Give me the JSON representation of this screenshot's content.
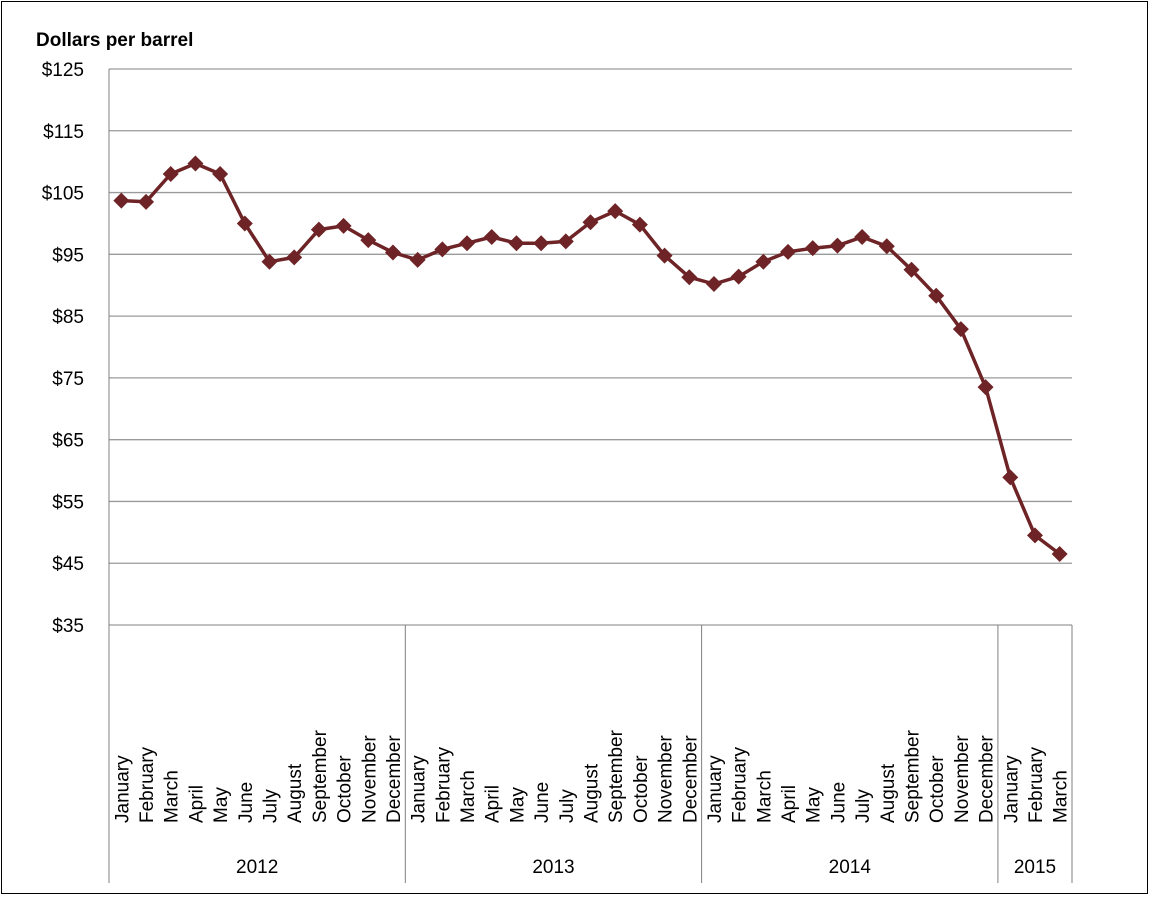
{
  "chart_data": {
    "type": "line",
    "ylabel": "Dollars per barrel",
    "xlabel": "",
    "ylim": [
      35,
      125
    ],
    "y_ticks": [
      "$35",
      "$45",
      "$55",
      "$65",
      "$75",
      "$85",
      "$95",
      "$105",
      "$115",
      "$125"
    ],
    "grid": true,
    "legend": "none",
    "colors": {
      "line": "#6e2426",
      "grid": "#9a9a9a",
      "axis": "#808080"
    },
    "marker": "diamond",
    "year_groups": [
      {
        "label": "2012",
        "months": [
          "January",
          "February",
          "March",
          "April",
          "May",
          "June",
          "July",
          "August",
          "September",
          "October",
          "November",
          "December"
        ]
      },
      {
        "label": "2013",
        "months": [
          "January",
          "February",
          "March",
          "April",
          "May",
          "June",
          "July",
          "August",
          "September",
          "October",
          "November",
          "December"
        ]
      },
      {
        "label": "2014",
        "months": [
          "January",
          "February",
          "March",
          "April",
          "May",
          "June",
          "July",
          "August",
          "September",
          "October",
          "November",
          "December"
        ]
      },
      {
        "label": "2015",
        "months": [
          "January",
          "February",
          "March"
        ]
      }
    ],
    "series": [
      {
        "values": [
          103.7,
          103.5,
          108.0,
          109.7,
          108.0,
          100.0,
          93.8,
          94.5,
          99.0,
          99.6,
          97.3,
          95.3,
          94.1,
          95.8,
          96.8,
          97.8,
          96.8,
          96.8,
          97.1,
          100.2,
          102.0,
          99.8,
          94.8,
          91.3,
          90.2,
          91.4,
          93.8,
          95.4,
          96.0,
          96.4,
          97.8,
          96.3,
          92.5,
          88.3,
          82.9,
          73.5,
          58.9,
          49.5,
          46.5
        ]
      }
    ]
  }
}
